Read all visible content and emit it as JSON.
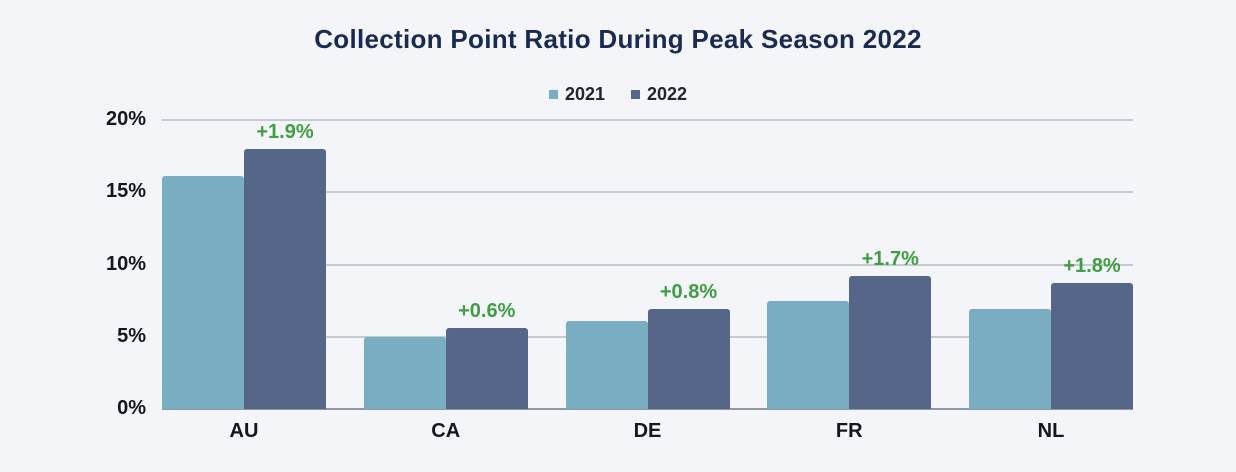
{
  "page": {
    "background": "#f3f5f9"
  },
  "header": {
    "title": "Collection Point Ratio During Peak Season 2022"
  },
  "legend": {
    "items": [
      {
        "label": "2021",
        "color": "#79adc2"
      },
      {
        "label": "2022",
        "color": "#566689"
      }
    ]
  },
  "chart_data": {
    "type": "bar",
    "title": "Collection Point Ratio During Peak Season 2022",
    "categories": [
      "AU",
      "CA",
      "DE",
      "FR",
      "NL"
    ],
    "series": [
      {
        "name": "2021",
        "color": "#79adc2",
        "values": [
          16.1,
          5.0,
          6.1,
          7.5,
          6.9
        ]
      },
      {
        "name": "2022",
        "color": "#566689",
        "values": [
          18.0,
          5.6,
          6.9,
          9.2,
          8.7
        ]
      }
    ],
    "annotations": [
      {
        "category": "AU",
        "series": "2022",
        "text": "+1.9%"
      },
      {
        "category": "CA",
        "series": "2022",
        "text": "+0.6%"
      },
      {
        "category": "DE",
        "series": "2022",
        "text": "+0.8%"
      },
      {
        "category": "FR",
        "series": "2022",
        "text": "+1.7%"
      },
      {
        "category": "NL",
        "series": "2022",
        "text": "+1.8%"
      }
    ],
    "annotation_color": "#3f9e42",
    "xlabel": "",
    "ylabel": "",
    "ylim": [
      0,
      20
    ],
    "yticks": [
      {
        "value": 0,
        "label": "0%"
      },
      {
        "value": 5,
        "label": "5%"
      },
      {
        "value": 10,
        "label": "10%"
      },
      {
        "value": 15,
        "label": "15%"
      },
      {
        "value": 20,
        "label": "20%"
      }
    ],
    "grid": true,
    "legend_position": "top-center"
  },
  "colors": {
    "background": "#f3f5f9",
    "title": "#1a2a50",
    "axis_text": "#14171e",
    "gridline": "#c6cad2",
    "baseline": "#9298a3",
    "annotation": "#3f9e42",
    "series_2021": "#79adc2",
    "series_2022": "#566689"
  }
}
